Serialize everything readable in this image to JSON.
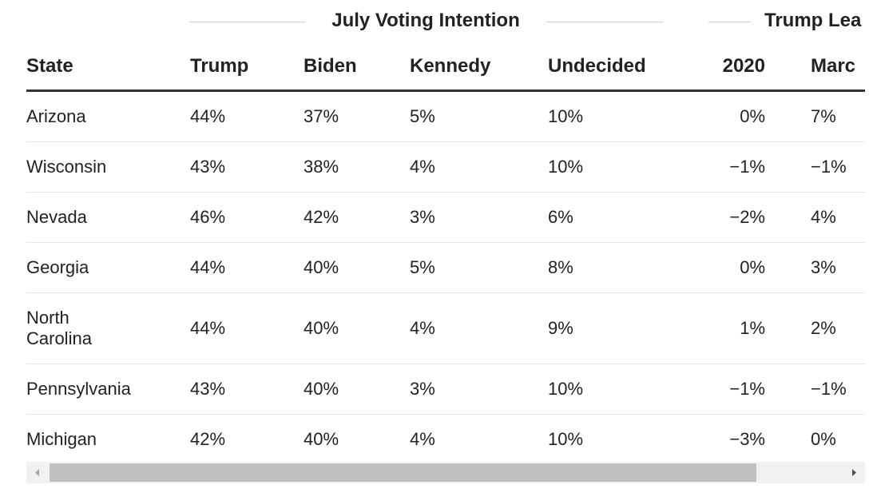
{
  "header": {
    "groups": [
      {
        "label": "July Voting Intention"
      },
      {
        "label": "Trump Lea"
      }
    ]
  },
  "table": {
    "columns": [
      "State",
      "Trump",
      "Biden",
      "Kennedy",
      "Undecided",
      "2020",
      "Marc"
    ],
    "rows": [
      [
        "Arizona",
        "44%",
        "37%",
        "5%",
        "10%",
        "0%",
        "7%"
      ],
      [
        "Wisconsin",
        "43%",
        "38%",
        "4%",
        "10%",
        "−1%",
        "−1%"
      ],
      [
        "Nevada",
        "46%",
        "42%",
        "3%",
        "6%",
        "−2%",
        "4%"
      ],
      [
        "Georgia",
        "44%",
        "40%",
        "5%",
        "8%",
        "0%",
        "3%"
      ],
      [
        "North Carolina",
        "44%",
        "40%",
        "4%",
        "9%",
        "1%",
        "2%"
      ],
      [
        "Pennsylvania",
        "43%",
        "40%",
        "3%",
        "10%",
        "−1%",
        "−1%"
      ],
      [
        "Michigan",
        "42%",
        "40%",
        "4%",
        "10%",
        "−3%",
        "0%"
      ]
    ]
  }
}
